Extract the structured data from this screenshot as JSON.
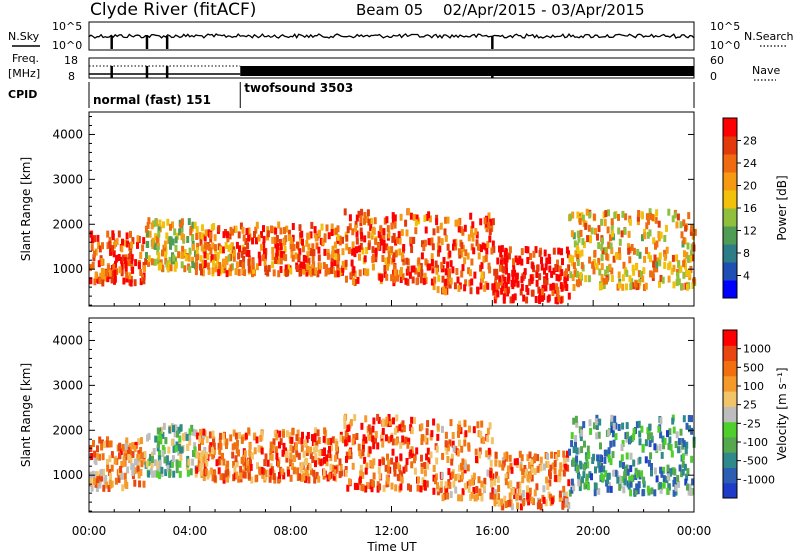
{
  "header": {
    "station": "Clyde River (fitACF)",
    "beam": "Beam 05",
    "date_range": "02/Apr/2015 - 03/Apr/2015"
  },
  "strip": {
    "nsky_label": "N.Sky",
    "nsearch_label": "N.Search",
    "noise_ticks": [
      "10^5",
      "10^0"
    ],
    "freq_label": "Freq.",
    "freq_unit": "[MHz]",
    "freq_ticks": [
      "18",
      "8"
    ],
    "nave_label": "Nave",
    "nave_ticks": [
      "60",
      "0"
    ],
    "cpid_label": "CPID",
    "cpid_modes": [
      {
        "name": "normal (fast) 151",
        "start_hour": 0,
        "end_hour": 6
      },
      {
        "name": "twofsound 3503",
        "start_hour": 6,
        "end_hour": 24
      }
    ]
  },
  "colors": {
    "power": [
      "#0000ff",
      "#1f4fb4",
      "#2c7d87",
      "#4f9d55",
      "#8fbf3c",
      "#f2c10c",
      "#f59a12",
      "#f06a10",
      "#e33a0b",
      "#ff0000"
    ],
    "velocity": [
      "#1e3cc8",
      "#2c5fb4",
      "#2e8a8a",
      "#55a84d",
      "#4fcf2b",
      "#bdbdbd",
      "#f2c46a",
      "#f59a2a",
      "#f07010",
      "#e84510",
      "#ff0000"
    ]
  },
  "chart_data": [
    {
      "type": "heatmap",
      "name": "power",
      "ylabel": "Slant Range [km]",
      "xlabel": "",
      "x_ticks": [
        "00:00",
        "04:00",
        "08:00",
        "12:00",
        "16:00",
        "20:00",
        "00:00"
      ],
      "xlim_hours": [
        0,
        24
      ],
      "ylim": [
        180,
        4500
      ],
      "y_ticks": [
        1000,
        2000,
        3000,
        4000
      ],
      "colorbar_label": "Power [dB]",
      "colorbar_ticks": [
        "4",
        "8",
        "12",
        "16",
        "20",
        "24",
        "28"
      ],
      "scatter_bands": [
        {
          "start": 0,
          "end": 2.2,
          "low": 700,
          "high": 1800,
          "value": 0.85
        },
        {
          "start": 2.2,
          "end": 4.2,
          "low": 1000,
          "high": 2100,
          "value": 0.55
        },
        {
          "start": 4.2,
          "end": 6,
          "low": 900,
          "high": 2000,
          "value": 0.72
        },
        {
          "start": 6,
          "end": 10,
          "low": 900,
          "high": 2000,
          "value": 0.8
        },
        {
          "start": 10,
          "end": 13.5,
          "low": 700,
          "high": 2300,
          "value": 0.78
        },
        {
          "start": 13.5,
          "end": 16,
          "low": 500,
          "high": 2200,
          "value": 0.82
        },
        {
          "start": 16,
          "end": 19,
          "low": 300,
          "high": 1500,
          "value": 0.95
        },
        {
          "start": 19,
          "end": 24,
          "low": 600,
          "high": 2300,
          "value": 0.62
        }
      ]
    },
    {
      "type": "heatmap",
      "name": "velocity",
      "ylabel": "Slant Range [km]",
      "xlabel": "Time UT",
      "x_ticks": [
        "00:00",
        "04:00",
        "08:00",
        "12:00",
        "16:00",
        "20:00",
        "00:00"
      ],
      "xlim_hours": [
        0,
        24
      ],
      "ylim": [
        180,
        4500
      ],
      "y_ticks": [
        1000,
        2000,
        3000,
        4000
      ],
      "colorbar_label": "Velocity [m s⁻¹]",
      "colorbar_ticks": [
        "1000",
        "500",
        "100",
        "25",
        "-25",
        "-100",
        "-500",
        "-1000"
      ],
      "scatter_bands": [
        {
          "start": 0,
          "end": 2.2,
          "low": 700,
          "high": 1800,
          "value": 0.7
        },
        {
          "start": 2.2,
          "end": 4.2,
          "low": 1000,
          "high": 2100,
          "value": 0.4
        },
        {
          "start": 4.2,
          "end": 6,
          "low": 900,
          "high": 2000,
          "value": 0.75
        },
        {
          "start": 6,
          "end": 10,
          "low": 900,
          "high": 2000,
          "value": 0.78
        },
        {
          "start": 10,
          "end": 13.5,
          "low": 700,
          "high": 2300,
          "value": 0.82
        },
        {
          "start": 13.5,
          "end": 16,
          "low": 500,
          "high": 2200,
          "value": 0.75
        },
        {
          "start": 16,
          "end": 19,
          "low": 300,
          "high": 1500,
          "value": 0.72
        },
        {
          "start": 19,
          "end": 24,
          "low": 600,
          "high": 2300,
          "value": 0.3
        }
      ]
    }
  ]
}
